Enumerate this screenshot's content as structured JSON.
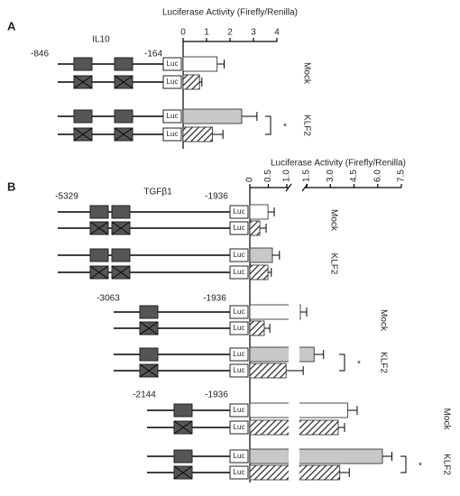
{
  "chart_data": [
    {
      "type": "bar",
      "panel": "A",
      "xlabel": "Luciferase Activity (Firefly/Renilla)",
      "gene": "IL10",
      "reporter": "Luc",
      "xlim": [
        0,
        4
      ],
      "xticks": [
        0,
        1,
        2,
        3,
        4
      ],
      "constructs": [
        {
          "start": "-846",
          "end": "-164",
          "sites": 2,
          "groups": [
            {
              "name": "Mock",
              "color": "#ffffff",
              "values": [
                1.45,
                0.7
              ],
              "errors": [
                0.3,
                0.1
              ]
            },
            {
              "name": "KLF2",
              "color": "#c8c8c8",
              "values": [
                2.5,
                1.25
              ],
              "errors": [
                0.65,
                0.45
              ],
              "mark": "*"
            }
          ]
        }
      ]
    },
    {
      "type": "bar",
      "panel": "B",
      "xlabel": "Luciferase Activity (Firefly/Renilla)",
      "gene": "TGFβ1",
      "reporter": "Luc",
      "xlim": [
        0,
        7.5
      ],
      "axis_break": [
        1.0,
        1.5
      ],
      "xticks": [
        0,
        0.5,
        {
          "value": 1.0,
          "label": "1.0"
        },
        1.5,
        {
          "value": 3.0,
          "label": "3.0"
        },
        4.5,
        {
          "value": 6.0,
          "label": "6.0"
        },
        7.5
      ],
      "constructs": [
        {
          "start": "-5329",
          "end": "-1936",
          "sites": 2,
          "groups": [
            {
              "name": "Mock",
              "color": "#ffffff",
              "values": [
                0.49,
                0.27
              ],
              "errors": [
                0.17,
                0.17
              ]
            },
            {
              "name": "KLF2",
              "color": "#c8c8c8",
              "values": [
                0.61,
                0.49
              ],
              "errors": [
                0.19,
                0.09
              ]
            }
          ]
        },
        {
          "start": "-3063",
          "end": "-1936",
          "sites": 1,
          "groups": [
            {
              "name": "Mock",
              "color": "#ffffff",
              "values": [
                1.1,
                0.39
              ],
              "errors": [
                0.4,
                0.15
              ]
            },
            {
              "name": "KLF2",
              "color": "#c8c8c8",
              "values": [
                1.97,
                0.98
              ],
              "errors": [
                0.6,
                0.3
              ],
              "mark": "*"
            }
          ]
        },
        {
          "start": "-2144",
          "end": "-1936",
          "sites": 1,
          "groups": [
            {
              "name": "Mock",
              "color": "#ffffff",
              "values": [
                4.1,
                3.5
              ],
              "errors": [
                0.6,
                0.4
              ]
            },
            {
              "name": "KLF2",
              "color": "#c8c8c8",
              "values": [
                6.3,
                3.6
              ],
              "errors": [
                0.6,
                0.6
              ],
              "mark": "*"
            }
          ]
        }
      ]
    }
  ]
}
